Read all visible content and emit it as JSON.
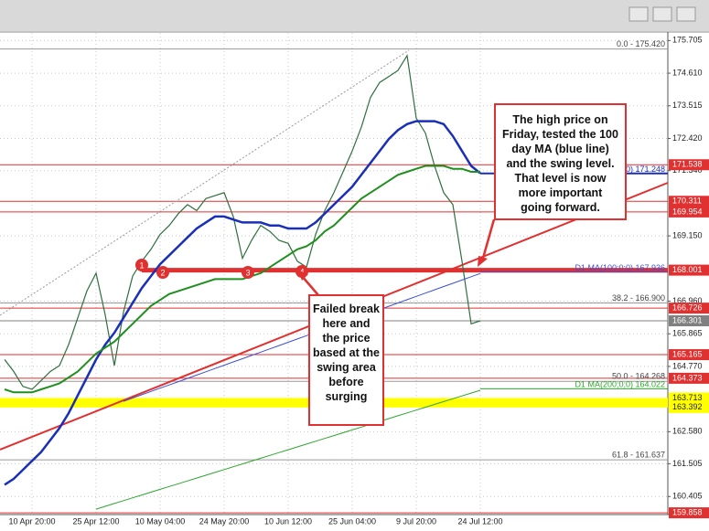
{
  "chart_data": {
    "type": "line",
    "categories": [
      null,
      null,
      null,
      "10 Apr 20:00",
      null,
      null,
      null,
      null,
      null,
      null,
      "25 Apr 12:00",
      null,
      null,
      null,
      null,
      null,
      null,
      "10 May 04:00",
      null,
      null,
      null,
      null,
      null,
      null,
      "24 May 20:00",
      null,
      null,
      null,
      null,
      null,
      null,
      "10 Jun 12:00",
      null,
      null,
      null,
      null,
      null,
      null,
      "25 Jun 04:00",
      null,
      null,
      null,
      null,
      null,
      null,
      "9 Jul 20:00",
      null,
      null,
      null,
      null,
      null,
      null,
      "24 Jul 12:00"
    ],
    "series": [
      {
        "color": "#2f6f3f",
        "values": [
          165.0,
          164.6,
          164.1,
          164.0,
          164.3,
          164.6,
          164.8,
          165.5,
          166.4,
          167.3,
          167.9,
          166.5,
          164.8,
          166.6,
          167.8,
          168.3,
          168.7,
          169.2,
          169.5,
          169.9,
          170.2,
          170.0,
          170.4,
          170.5,
          170.6,
          169.8,
          168.4,
          169.0,
          169.5,
          169.3,
          169.0,
          168.9,
          168.3,
          168.1,
          169.2,
          170.0,
          170.6,
          171.3,
          172.0,
          172.8,
          173.8,
          174.3,
          174.5,
          174.7,
          175.2,
          173.1,
          172.6,
          171.5,
          170.6,
          170.2,
          168.3,
          166.2,
          166.3
        ]
      },
      {
        "color": "#1a2fb8",
        "values": [
          160.8,
          161.0,
          161.3,
          161.6,
          161.9,
          162.3,
          162.7,
          163.2,
          163.8,
          164.4,
          165.0,
          165.5,
          165.9,
          166.4,
          166.9,
          167.4,
          167.8,
          168.2,
          168.5,
          168.8,
          169.1,
          169.4,
          169.6,
          169.8,
          169.8,
          169.7,
          169.6,
          169.6,
          169.6,
          169.5,
          169.5,
          169.4,
          169.4,
          169.4,
          169.6,
          169.9,
          170.2,
          170.5,
          170.8,
          171.2,
          171.6,
          172.0,
          172.4,
          172.7,
          172.9,
          173.0,
          173.0,
          173.0,
          172.9,
          172.5,
          172.0,
          171.5,
          171.25
        ]
      },
      {
        "color": "#1f8f1f",
        "values": [
          164.0,
          163.9,
          163.9,
          163.9,
          164.0,
          164.1,
          164.2,
          164.4,
          164.6,
          164.9,
          165.2,
          165.4,
          165.6,
          165.9,
          166.2,
          166.5,
          166.8,
          167.0,
          167.2,
          167.3,
          167.4,
          167.5,
          167.6,
          167.7,
          167.7,
          167.7,
          167.7,
          167.8,
          167.9,
          168.1,
          168.3,
          168.5,
          168.7,
          168.8,
          169.0,
          169.3,
          169.5,
          169.8,
          170.1,
          170.4,
          170.6,
          170.8,
          171.0,
          171.2,
          171.3,
          171.4,
          171.5,
          171.5,
          171.5,
          171.4,
          171.4,
          171.3,
          171.3
        ]
      },
      {
        "color": "#3b4fd6",
        "values": [
          null,
          null,
          null,
          null,
          null,
          null,
          null,
          null,
          null,
          null,
          null,
          null,
          null,
          163.6,
          163.71,
          163.82,
          163.93,
          164.04,
          164.15,
          164.26,
          164.37,
          164.48,
          164.59,
          164.7,
          164.81,
          164.92,
          165.03,
          165.14,
          165.25,
          165.36,
          165.47,
          165.58,
          165.69,
          165.8,
          165.91,
          166.02,
          166.13,
          166.24,
          166.35,
          166.46,
          166.57,
          166.68,
          166.79,
          166.9,
          167.01,
          167.12,
          167.23,
          167.34,
          167.45,
          167.56,
          167.67,
          167.78,
          167.89
        ]
      },
      {
        "color": "#2ea52e",
        "values": [
          null,
          null,
          null,
          null,
          null,
          null,
          null,
          null,
          null,
          null,
          159.98,
          160.075,
          160.17,
          160.265,
          160.36,
          160.455,
          160.55,
          160.645,
          160.74,
          160.835,
          160.93,
          161.025,
          161.12,
          161.215,
          161.31,
          161.405,
          161.5,
          161.595,
          161.69,
          161.785,
          161.88,
          161.975,
          162.07,
          162.165,
          162.26,
          162.355,
          162.45,
          162.545,
          162.64,
          162.735,
          162.83,
          162.925,
          163.02,
          163.115,
          163.21,
          163.305,
          163.4,
          163.495,
          163.59,
          163.685,
          163.78,
          163.875,
          163.97
        ]
      }
    ],
    "ylim": [
      159.8,
      175.9
    ],
    "yticks": [
      175.705,
      {
        "value": 174.61,
        "label": "174.610"
      },
      173.515,
      {
        "value": 172.42,
        "label": "172.420"
      },
      {
        "value": 171.34,
        "label": "171.340"
      },
      {
        "value": 169.15,
        "label": "169.150"
      },
      {
        "value": 166.96,
        "label": "166.960"
      },
      165.865,
      {
        "value": 164.77,
        "label": "164.770"
      },
      {
        "value": 162.58,
        "label": "162.580"
      },
      161.505,
      160.405
    ],
    "grid": true,
    "levels": [
      {
        "value": 171.538,
        "label": "171.538",
        "color": "#e03030"
      },
      {
        "value": 170.311,
        "label": "170.311",
        "color": "#e03030"
      },
      {
        "value": 169.954,
        "label": "169.954",
        "color": "#e03030"
      },
      {
        "value": 168.001,
        "label": "168.001",
        "color": "#e03030",
        "style": "swing"
      },
      {
        "value": 166.726,
        "label": "166.726",
        "color": "#e03030"
      },
      {
        "value": 166.301,
        "label": "166.301",
        "color": "#808080"
      },
      {
        "value": 165.165,
        "label": "165.165",
        "color": "#e03030"
      },
      {
        "value": 164.373,
        "label": "164.373",
        "color": "#e03030"
      },
      {
        "value": 163.713,
        "label": "163.713",
        "color": "#ffff00",
        "style": "band"
      },
      {
        "value": 163.392,
        "label": "163.392",
        "color": "#ffff00",
        "style": "band"
      },
      {
        "value": 159.858,
        "label": "159.858",
        "color": "#e03030"
      }
    ],
    "fibonacci": [
      {
        "value": 175.42,
        "label": "0.0 - 175.420"
      },
      {
        "value": 166.9,
        "label": "38.2 - 166.900"
      },
      {
        "value": 164.268,
        "label": "50.0 - 164.268"
      },
      {
        "value": 161.637,
        "label": "61.8 - 161.637"
      }
    ],
    "ma_labels": [
      {
        "value": 171.248,
        "label": "0;0) 171.248",
        "color": "#1a2fb8"
      },
      {
        "value": 167.936,
        "label": "D1 MA(100;0;0) 167.936",
        "color": "#3b4fd6"
      },
      {
        "value": 164.022,
        "label": "D1 MA(200;0;0) 164.022",
        "color": "#2ea52e"
      }
    ],
    "swing_markers": [
      1,
      2,
      3,
      4
    ],
    "annotations": [
      {
        "text": "The high price on Friday, tested the 100 day MA (blue line) and the swing level. That level is now more important going forward."
      },
      {
        "text": "Failed break here and the price based at the swing area before surging"
      }
    ]
  }
}
